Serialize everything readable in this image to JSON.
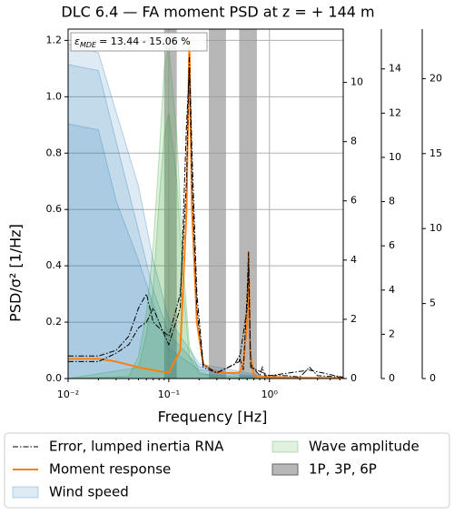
{
  "chart_data": {
    "type": "line",
    "title": "DLC 6.4 — FA moment PSD at z = + 144 m",
    "xlabel": "Frequency [Hz]",
    "ylabel": "PSD/σ² [1/Hz]",
    "annotation": {
      "symbol": "ε",
      "subscript": "MDE",
      "text": "= 13.44 - 15.06 %"
    },
    "xscale": "log",
    "xlim": [
      0.01,
      5.4
    ],
    "xticks": [
      {
        "value": 0.01,
        "label": "10⁻²"
      },
      {
        "value": 0.1,
        "label": "10⁻¹"
      },
      {
        "value": 1,
        "label": "10⁰"
      }
    ],
    "ylim": [
      0,
      1.24
    ],
    "yticks": [
      {
        "value": 0,
        "label": "0.0"
      },
      {
        "value": 0.2,
        "label": "0.2"
      },
      {
        "value": 0.4,
        "label": "0.4"
      },
      {
        "value": 0.6,
        "label": "0.6"
      },
      {
        "value": 0.8,
        "label": "0.8"
      },
      {
        "value": 1,
        "label": "1.0"
      },
      {
        "value": 1.2,
        "label": "1.2"
      }
    ],
    "y2lim": [
      0,
      11.8
    ],
    "y2ticks": [
      0,
      2,
      4,
      6,
      8,
      10
    ],
    "y2color": "#1f77b4",
    "y3lim": [
      0,
      15.8
    ],
    "y3ticks": [
      0,
      2,
      4,
      6,
      8,
      10,
      12,
      14
    ],
    "y3color": "#2ca02c",
    "y4lim": [
      0,
      23.3
    ],
    "y4ticks": [
      0,
      5,
      10,
      15,
      20
    ],
    "y4color": "#ff7f0e",
    "grid": true,
    "legend": "bottom",
    "spans": {
      "name": "1P, 3P, 6P",
      "color": "#999999",
      "edges": [
        [
          0.09,
          0.12
        ],
        [
          0.25,
          0.37
        ],
        [
          0.5,
          0.75
        ]
      ]
    },
    "series": [
      {
        "name": "Wind speed",
        "color": "#1f77b4",
        "kind": "area",
        "axis": "y2",
        "curves": [
          {
            "x": [
              0.01,
              0.02,
              0.03,
              0.05,
              0.07,
              0.1,
              0.2,
              0.5,
              1,
              5.4
            ],
            "values": [
              10.6,
              10.4,
              8,
              5,
              3,
              1.5,
              0.4,
              0.1,
              0.05,
              0.01
            ]
          },
          {
            "x": [
              0.01,
              0.02,
              0.03,
              0.05,
              0.07,
              0.1,
              0.2,
              1,
              5.4
            ],
            "values": [
              8.6,
              8.4,
              6,
              4,
              2.5,
              1,
              0.3,
              0.03,
              0.01
            ]
          },
          {
            "x": [
              0.01,
              0.02,
              0.03,
              0.05,
              0.07,
              0.1,
              0.2,
              1,
              5.4
            ],
            "values": [
              11.3,
              11,
              9,
              6.5,
              4,
              2,
              0.5,
              0.05,
              0.01
            ]
          }
        ]
      },
      {
        "name": "Wave amplitude",
        "color": "#2ca02c",
        "kind": "area",
        "axis": "y3",
        "curves": [
          {
            "x": [
              0.01,
              0.04,
              0.05,
              0.06,
              0.07,
              0.08,
              0.09,
              0.1,
              0.12,
              0.14,
              0.16,
              0.2,
              0.3,
              1,
              5.4
            ],
            "values": [
              0,
              0.1,
              1,
              3,
              6,
              10,
              14,
              15,
              11,
              5,
              1.5,
              0.3,
              0.05,
              0,
              0
            ]
          },
          {
            "x": [
              0.01,
              0.05,
              0.06,
              0.07,
              0.08,
              0.09,
              0.1,
              0.12,
              0.14,
              0.16,
              0.2,
              1,
              5.4
            ],
            "values": [
              0,
              0.5,
              2,
              4,
              8,
              11,
              12,
              9,
              4,
              1,
              0.2,
              0,
              0
            ]
          }
        ]
      },
      {
        "name": "Moment response",
        "color": "#ff7f0e",
        "kind": "line",
        "axis": "y",
        "curves": [
          {
            "x": [
              0.01,
              0.02,
              0.03,
              0.05,
              0.07,
              0.1,
              0.13,
              0.15,
              0.16,
              0.17,
              0.19,
              0.22,
              0.3,
              0.5,
              0.55,
              0.6,
              0.62,
              0.64,
              0.7,
              1,
              2,
              5.4
            ],
            "values": [
              0.07,
              0.07,
              0.06,
              0.04,
              0.03,
              0.02,
              0.1,
              0.6,
              1.2,
              0.6,
              0.2,
              0.05,
              0.02,
              0.02,
              0.05,
              0.2,
              0.45,
              0.1,
              0.01,
              0.005,
              0.003,
              0.002
            ]
          }
        ]
      },
      {
        "name": "Error, lumped inertia RNA",
        "color": "#000000",
        "kind": "dashdot",
        "axis": "y",
        "curves": [
          {
            "x": [
              0.01,
              0.02,
              0.03,
              0.04,
              0.05,
              0.06,
              0.07,
              0.08,
              0.1,
              0.13,
              0.15,
              0.16,
              0.17,
              0.19,
              0.22,
              0.3,
              0.45,
              0.5,
              0.55,
              0.6,
              0.62,
              0.65,
              0.8,
              0.85,
              0.9,
              1.5,
              2,
              2.5,
              3,
              5.4
            ],
            "values": [
              0.08,
              0.08,
              0.1,
              0.15,
              0.25,
              0.3,
              0.2,
              0.18,
              0.15,
              0.3,
              0.7,
              1.15,
              0.8,
              0.3,
              0.05,
              0.02,
              0.05,
              0.08,
              0.03,
              0.3,
              0.45,
              0.05,
              0.01,
              0.04,
              0.01,
              0.01,
              0.005,
              0.04,
              0.01,
              0.005
            ]
          },
          {
            "x": [
              0.01,
              0.02,
              0.03,
              0.04,
              0.05,
              0.06,
              0.07,
              0.08,
              0.1,
              0.13,
              0.15,
              0.16,
              0.17,
              0.19,
              0.22,
              0.3,
              0.5,
              0.6,
              0.62,
              0.65,
              1,
              2.5,
              5.4
            ],
            "values": [
              0.06,
              0.06,
              0.09,
              0.12,
              0.18,
              0.2,
              0.25,
              0.2,
              0.12,
              0.25,
              0.9,
              1.1,
              0.7,
              0.25,
              0.04,
              0.02,
              0.06,
              0.25,
              0.4,
              0.04,
              0.01,
              0.03,
              0.004
            ]
          }
        ]
      }
    ]
  }
}
